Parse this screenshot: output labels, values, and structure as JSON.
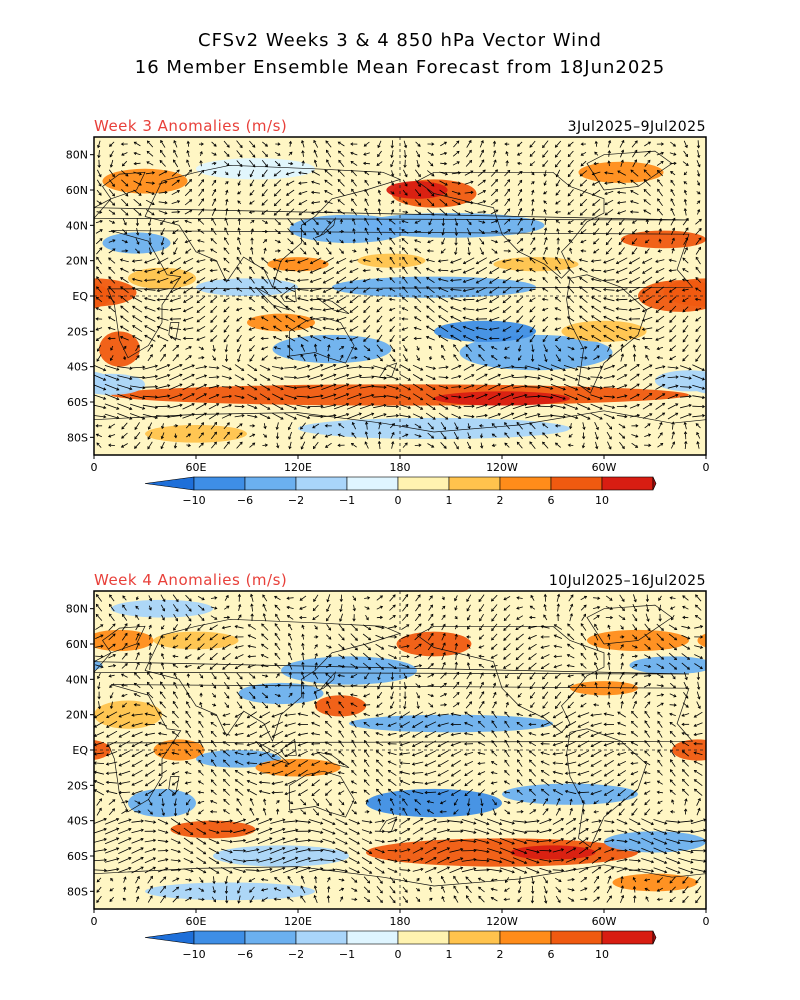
{
  "title_line1": "CFSv2 Weeks 3 & 4 850 hPa Vector Wind",
  "title_line2": "16 Member Ensemble Mean Forecast from 18Jun2025",
  "panels": [
    {
      "label": "Week 3 Anomalies (m/s)",
      "dates": "3Jul2025–9Jul2025"
    },
    {
      "label": "Week 4 Anomalies (m/s)",
      "dates": "10Jul2025–16Jul2025"
    }
  ],
  "lat_labels": [
    "80N",
    "60N",
    "40N",
    "20N",
    "EQ",
    "20S",
    "40S",
    "60S",
    "80S"
  ],
  "lon_labels": [
    "0",
    "60E",
    "120E",
    "180",
    "120W",
    "60W",
    "0"
  ],
  "colorbar": {
    "labels": [
      "-10",
      "-6",
      "-2",
      "-1",
      "0",
      "1",
      "2",
      "6",
      "10"
    ],
    "colors": [
      "#1e6fd9",
      "#3e8ee6",
      "#6bb0f0",
      "#a9d5fa",
      "#dff5ff",
      "#fff3b0",
      "#ffc34d",
      "#ff8c1a",
      "#f05a10",
      "#d81d12",
      "#a50f0f"
    ]
  }
}
